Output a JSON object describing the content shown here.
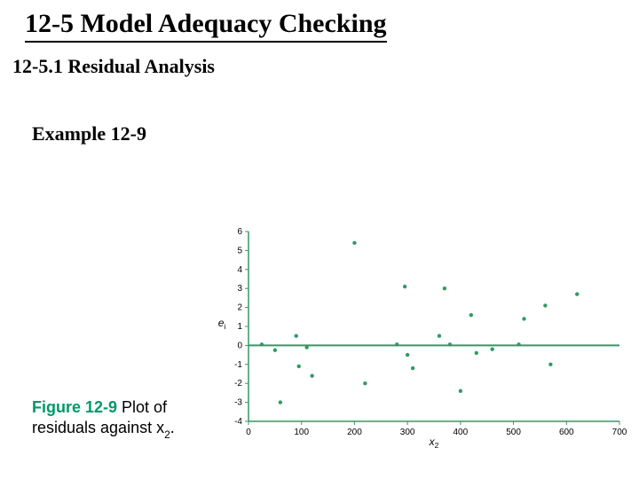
{
  "slide": {
    "title": "12-5 Model Adequacy Checking",
    "subsection": "12-5.1 Residual Analysis",
    "example": "Example 12-9"
  },
  "figure": {
    "label": "Figure 12-9",
    "caption_pre": " Plot of residuals against x",
    "caption_sub": "2",
    "caption_post": "."
  },
  "chart": {
    "type": "scatter",
    "x_label": "x",
    "x_label_sub": "2",
    "y_label": "e",
    "y_label_sub": "i",
    "y_label_italic": true,
    "xlim": [
      0,
      700
    ],
    "ylim": [
      -4,
      6
    ],
    "x_ticks": [
      0,
      100,
      200,
      300,
      400,
      500,
      600,
      700
    ],
    "y_ticks": [
      -4,
      -3,
      -2,
      -1,
      0,
      1,
      2,
      3,
      4,
      5,
      6
    ],
    "axis_color": "#339966",
    "zero_line_color": "#339966",
    "zero_line_width": 2,
    "tick_font_size": 10,
    "label_font_size": 12,
    "marker_color": "#339966",
    "marker_radius": 2.2,
    "background_color": "#ffffff",
    "zero_line_y": 0,
    "points": [
      [
        25,
        0.05
      ],
      [
        50,
        -0.25
      ],
      [
        60,
        -3.0
      ],
      [
        90,
        0.5
      ],
      [
        95,
        -1.1
      ],
      [
        110,
        -0.1
      ],
      [
        120,
        -1.6
      ],
      [
        200,
        5.4
      ],
      [
        220,
        -2.0
      ],
      [
        280,
        0.05
      ],
      [
        295,
        3.1
      ],
      [
        300,
        -0.5
      ],
      [
        310,
        -1.2
      ],
      [
        360,
        0.5
      ],
      [
        370,
        3.0
      ],
      [
        380,
        0.05
      ],
      [
        400,
        -2.4
      ],
      [
        420,
        1.6
      ],
      [
        430,
        -0.4
      ],
      [
        460,
        -0.2
      ],
      [
        510,
        0.05
      ],
      [
        520,
        1.4
      ],
      [
        560,
        2.1
      ],
      [
        570,
        -1.0
      ],
      [
        620,
        2.7
      ]
    ]
  }
}
